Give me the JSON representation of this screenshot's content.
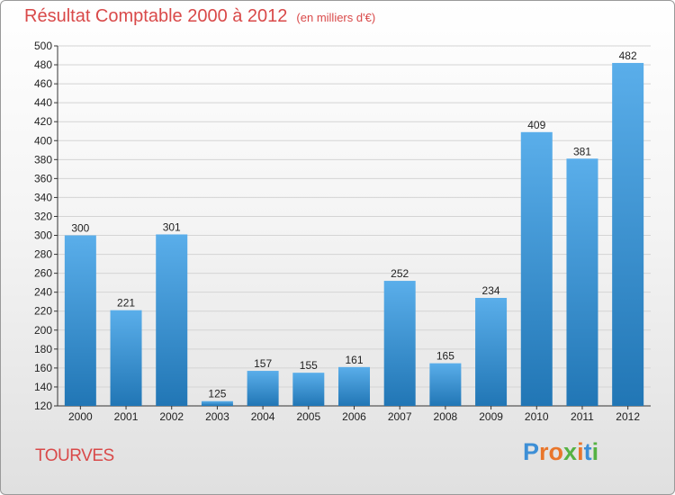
{
  "title": "Résultat Comptable 2000 à 2012",
  "subtitle": "(en milliers d'€)",
  "commune": "TOURVES",
  "logo": {
    "letters": [
      "P",
      "r",
      "o",
      "x",
      "i",
      "t",
      "i"
    ],
    "colors": [
      "#3d8fd6",
      "#e9762b",
      "#e9762b",
      "#55b243",
      "#e9762b",
      "#3d8fd6",
      "#55b243"
    ]
  },
  "colors": {
    "title": "#d94949",
    "bar_top": "#5aaeea",
    "bar_bottom": "#2176b5",
    "grid": "#d4d4d4"
  },
  "chart_data": {
    "type": "bar",
    "categories": [
      "2000",
      "2001",
      "2002",
      "2003",
      "2004",
      "2005",
      "2006",
      "2007",
      "2008",
      "2009",
      "2010",
      "2011",
      "2012"
    ],
    "values": [
      300,
      221,
      301,
      125,
      157,
      155,
      161,
      252,
      165,
      234,
      409,
      381,
      482
    ],
    "ylim": [
      120,
      500
    ],
    "ytick_step": 20,
    "grid": true,
    "xlabel": "",
    "ylabel": ""
  }
}
